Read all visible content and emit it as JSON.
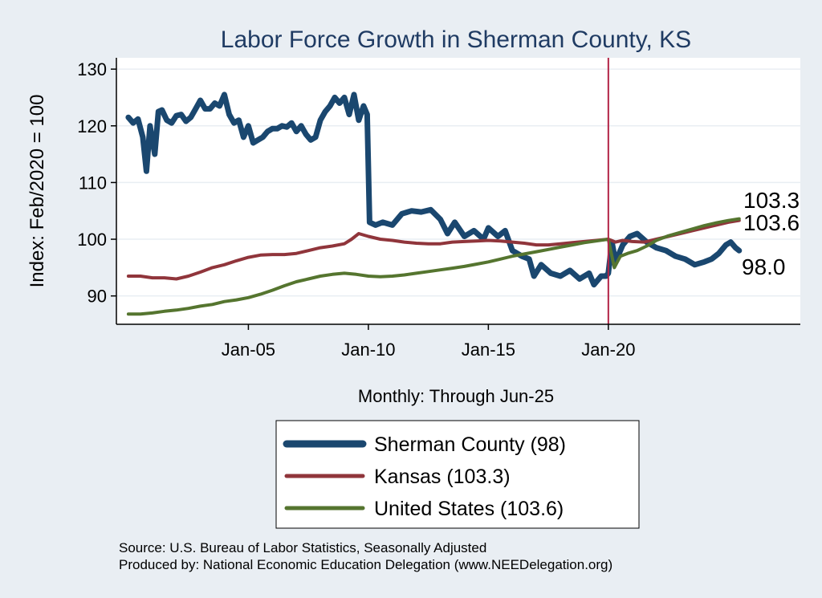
{
  "chart_data": {
    "type": "line",
    "title": "Labor Force Growth in Sherman  County, KS",
    "ylabel": "Index: Feb/2020 = 100",
    "xlabel": "Monthly: Through Jun-25",
    "ylim": [
      85,
      132
    ],
    "yticks": [
      90,
      100,
      110,
      120,
      130
    ],
    "xlim": [
      1999.5,
      2028.0
    ],
    "xticks": [
      {
        "label": "Jan-05",
        "value": 2005.0
      },
      {
        "label": "Jan-10",
        "value": 2010.0
      },
      {
        "label": "Jan-15",
        "value": 2015.0
      },
      {
        "label": "Jan-20",
        "value": 2020.0
      }
    ],
    "reference_line": {
      "x": 2020.0,
      "color": "#b22446"
    },
    "grid": true,
    "legend_position": "bottom",
    "series": [
      {
        "name": "Sherman  County",
        "legend_label": "Sherman  County (98)",
        "end_label": "98.0",
        "color": "#1a476f",
        "x": [
          2000.0,
          2000.2,
          2000.4,
          2000.6,
          2000.75,
          2000.9,
          2001.1,
          2001.25,
          2001.4,
          2001.6,
          2001.8,
          2002.0,
          2002.2,
          2002.4,
          2002.6,
          2002.8,
          2003.0,
          2003.2,
          2003.4,
          2003.6,
          2003.8,
          2004.0,
          2004.2,
          2004.4,
          2004.6,
          2004.8,
          2005.0,
          2005.2,
          2005.4,
          2005.6,
          2005.8,
          2006.0,
          2006.2,
          2006.4,
          2006.6,
          2006.8,
          2007.0,
          2007.2,
          2007.4,
          2007.6,
          2007.8,
          2008.0,
          2008.2,
          2008.4,
          2008.6,
          2008.8,
          2009.0,
          2009.2,
          2009.4,
          2009.6,
          2009.8,
          2009.95,
          2010.05,
          2010.3,
          2010.6,
          2011.0,
          2011.4,
          2011.8,
          2012.2,
          2012.6,
          2013.0,
          2013.3,
          2013.6,
          2014.0,
          2014.4,
          2014.8,
          2015.0,
          2015.4,
          2015.7,
          2016.0,
          2016.4,
          2016.7,
          2016.9,
          2017.2,
          2017.6,
          2018.0,
          2018.4,
          2018.8,
          2019.2,
          2019.4,
          2019.7,
          2019.9,
          2020.0,
          2020.15,
          2020.3,
          2020.6,
          2020.9,
          2021.2,
          2021.6,
          2022.0,
          2022.4,
          2022.8,
          2023.2,
          2023.6,
          2024.0,
          2024.3,
          2024.6,
          2024.9,
          2025.1,
          2025.3,
          2025.45
        ],
        "y": [
          121.5,
          120.5,
          121.2,
          118.0,
          112.0,
          120.0,
          115.0,
          122.5,
          122.8,
          121.0,
          120.5,
          121.8,
          122.0,
          120.8,
          121.5,
          123.0,
          124.5,
          123.0,
          123.0,
          124.0,
          123.5,
          125.5,
          122.0,
          120.5,
          121.0,
          118.0,
          120.0,
          117.0,
          117.5,
          118.0,
          119.0,
          119.5,
          119.5,
          120.0,
          119.8,
          120.5,
          119.0,
          120.0,
          118.5,
          117.5,
          118.0,
          121.0,
          122.5,
          123.5,
          125.0,
          124.0,
          125.0,
          122.0,
          125.5,
          121.0,
          123.5,
          122.0,
          103.0,
          102.5,
          103.0,
          102.5,
          104.5,
          105.0,
          104.8,
          105.2,
          103.5,
          101.0,
          103.0,
          100.5,
          101.5,
          100.0,
          102.0,
          100.5,
          101.5,
          98.0,
          97.0,
          96.5,
          93.5,
          95.5,
          94.0,
          93.5,
          94.5,
          93.0,
          94.0,
          92.0,
          93.5,
          93.5,
          94.0,
          99.5,
          96.0,
          99.0,
          100.5,
          101.0,
          99.5,
          98.5,
          98.0,
          97.0,
          96.5,
          95.5,
          96.0,
          96.5,
          97.5,
          99.0,
          99.5,
          98.5,
          98.0
        ]
      },
      {
        "name": "Kansas",
        "legend_label": "Kansas (103.3)",
        "end_label": "103.3",
        "color": "#90353b",
        "x": [
          2000.0,
          2000.5,
          2001.0,
          2001.5,
          2002.0,
          2002.5,
          2003.0,
          2003.5,
          2004.0,
          2004.5,
          2005.0,
          2005.5,
          2006.0,
          2006.5,
          2007.0,
          2007.5,
          2008.0,
          2008.5,
          2009.0,
          2009.3,
          2009.6,
          2010.0,
          2010.5,
          2011.0,
          2011.5,
          2012.0,
          2012.5,
          2013.0,
          2013.5,
          2014.0,
          2014.5,
          2015.0,
          2015.5,
          2016.0,
          2016.5,
          2017.0,
          2017.5,
          2018.0,
          2018.5,
          2019.0,
          2019.5,
          2020.0,
          2020.3,
          2020.6,
          2021.0,
          2021.5,
          2022.0,
          2022.5,
          2023.0,
          2023.5,
          2024.0,
          2024.5,
          2025.0,
          2025.45
        ],
        "y": [
          93.5,
          93.5,
          93.2,
          93.2,
          93.0,
          93.5,
          94.2,
          95.0,
          95.5,
          96.2,
          96.8,
          97.2,
          97.3,
          97.3,
          97.5,
          98.0,
          98.5,
          98.8,
          99.2,
          100.0,
          101.0,
          100.5,
          100.0,
          99.8,
          99.5,
          99.3,
          99.2,
          99.2,
          99.5,
          99.6,
          99.7,
          99.8,
          99.7,
          99.5,
          99.3,
          99.0,
          99.0,
          99.2,
          99.4,
          99.6,
          99.8,
          100.0,
          99.5,
          99.8,
          99.6,
          99.5,
          100.0,
          100.5,
          101.0,
          101.5,
          102.0,
          102.5,
          103.0,
          103.3
        ]
      },
      {
        "name": "United States",
        "legend_label": "United States (103.6)",
        "end_label": "103.6",
        "color": "#55752f",
        "x": [
          2000.0,
          2000.5,
          2001.0,
          2001.5,
          2002.0,
          2002.5,
          2003.0,
          2003.5,
          2004.0,
          2004.5,
          2005.0,
          2005.5,
          2006.0,
          2006.5,
          2007.0,
          2007.5,
          2008.0,
          2008.5,
          2009.0,
          2009.5,
          2010.0,
          2010.5,
          2011.0,
          2011.5,
          2012.0,
          2012.5,
          2013.0,
          2013.5,
          2014.0,
          2014.5,
          2015.0,
          2015.5,
          2016.0,
          2016.5,
          2017.0,
          2017.5,
          2018.0,
          2018.5,
          2019.0,
          2019.5,
          2020.0,
          2020.1,
          2020.25,
          2020.5,
          2020.8,
          2021.2,
          2021.6,
          2022.0,
          2022.5,
          2023.0,
          2023.5,
          2024.0,
          2024.5,
          2025.0,
          2025.45
        ],
        "y": [
          86.8,
          86.8,
          87.0,
          87.3,
          87.5,
          87.8,
          88.2,
          88.5,
          89.0,
          89.3,
          89.7,
          90.3,
          91.0,
          91.8,
          92.5,
          93.0,
          93.5,
          93.8,
          94.0,
          93.8,
          93.5,
          93.4,
          93.5,
          93.7,
          94.0,
          94.3,
          94.6,
          94.9,
          95.2,
          95.6,
          96.0,
          96.5,
          97.0,
          97.4,
          97.8,
          98.2,
          98.6,
          99.0,
          99.4,
          99.7,
          100.0,
          98.0,
          95.0,
          97.0,
          97.5,
          98.0,
          98.8,
          99.8,
          100.6,
          101.2,
          101.8,
          102.4,
          102.9,
          103.3,
          103.6
        ]
      }
    ],
    "source_note": "Source: U.S. Bureau of Labor Statistics, Seasonally Adjusted",
    "producer_note": "Produced by: National Economic Education Delegation (www.NEEDelegation.org)"
  }
}
